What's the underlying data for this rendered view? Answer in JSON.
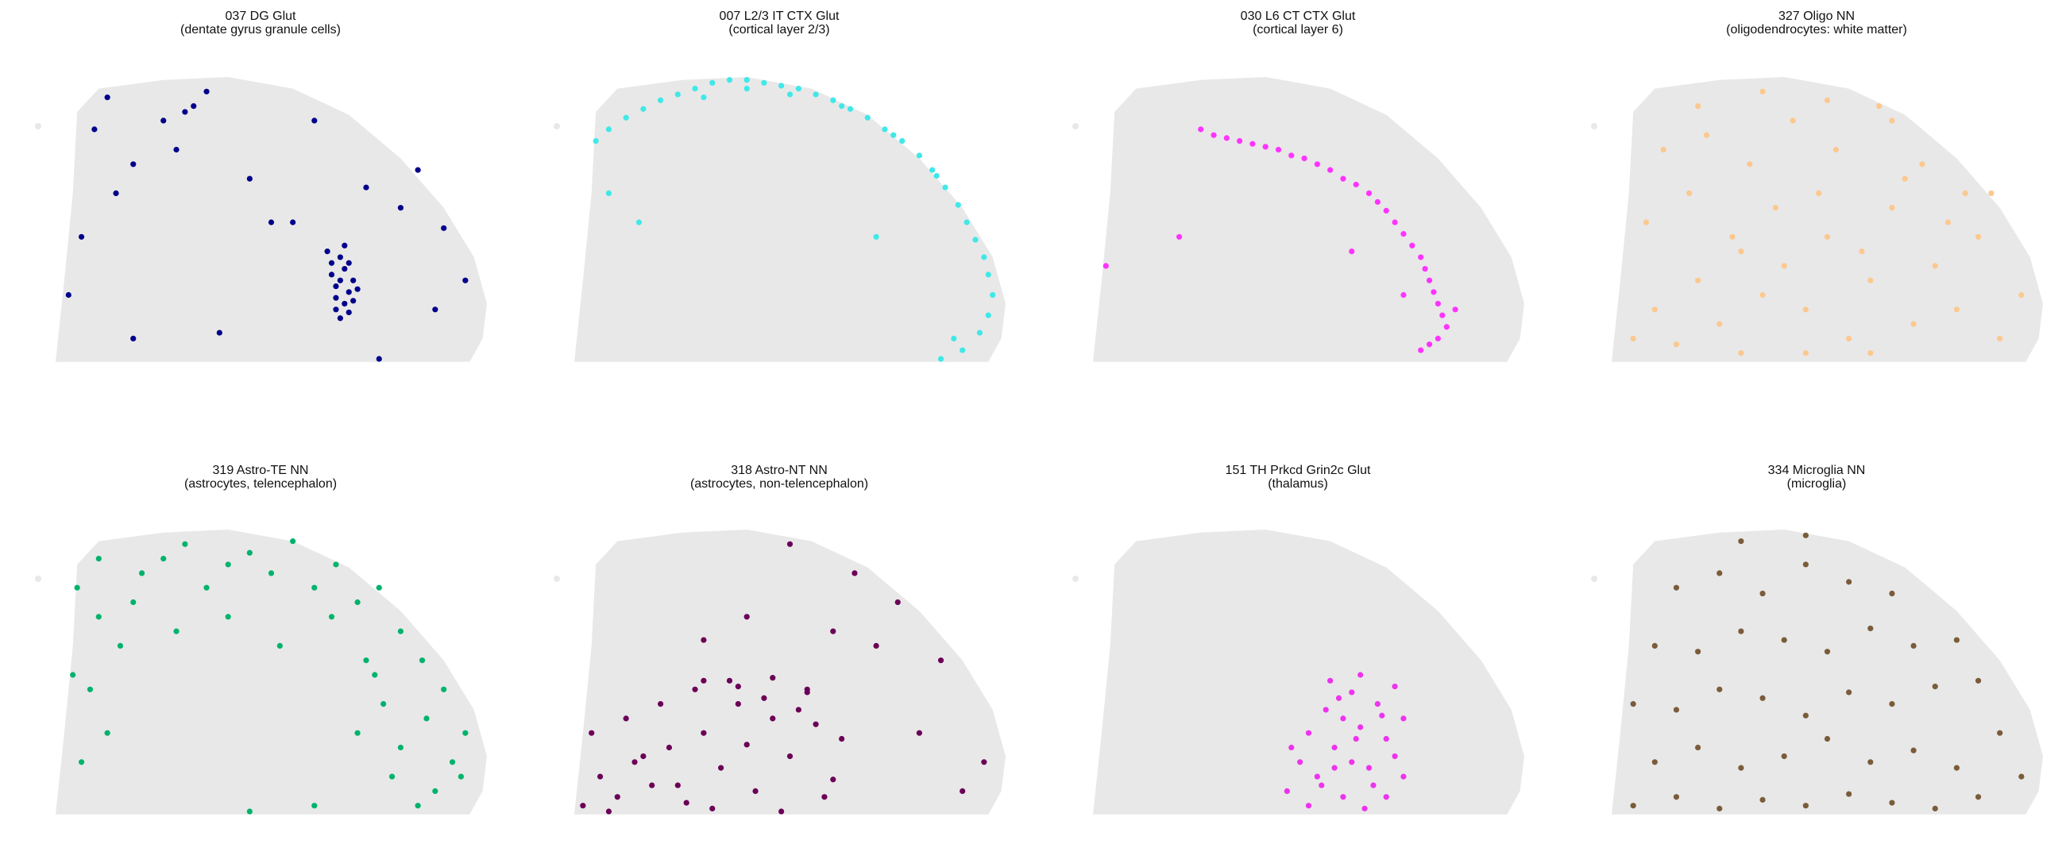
{
  "chart_data": [
    {
      "type": "scatter",
      "title": "037 DG Glut",
      "subtitle": "(dentate gyrus granule cells)",
      "color": "#00008b",
      "xlim": [
        0,
        100
      ],
      "ylim": [
        0,
        100
      ],
      "x": [
        63,
        64,
        64,
        65,
        65,
        66,
        66,
        67,
        67,
        68,
        68,
        69,
        69,
        70,
        65,
        66,
        67,
        68,
        9,
        18,
        25,
        32,
        28,
        14,
        6,
        3,
        35,
        45,
        55,
        72,
        80,
        90,
        95,
        88,
        75,
        38,
        50,
        60,
        18,
        30,
        84,
        12
      ],
      "y": [
        40,
        36,
        32,
        28,
        24,
        38,
        30,
        22,
        34,
        26,
        19,
        30,
        23,
        27,
        20,
        17,
        42,
        36,
        82,
        70,
        85,
        90,
        75,
        60,
        45,
        25,
        95,
        65,
        50,
        62,
        55,
        48,
        30,
        20,
        3,
        12,
        50,
        85,
        10,
        88,
        68,
        93
      ]
    },
    {
      "type": "scatter",
      "title": "007 L2/3 IT CTX Glut",
      "subtitle": "(cortical layer 2/3)",
      "color": "#40e8e8",
      "xlim": [
        0,
        100
      ],
      "ylim": [
        0,
        100
      ],
      "x": [
        5,
        8,
        12,
        16,
        20,
        24,
        28,
        32,
        36,
        40,
        44,
        48,
        52,
        56,
        60,
        64,
        68,
        72,
        76,
        80,
        83,
        86,
        89,
        91,
        93,
        95,
        96,
        97,
        96,
        94,
        90,
        85,
        30,
        40,
        50,
        62,
        74,
        84,
        8,
        15,
        88,
        70
      ],
      "y": [
        78,
        82,
        86,
        89,
        92,
        94,
        96,
        98,
        99,
        99,
        98,
        97,
        96,
        94,
        92,
        89,
        86,
        82,
        78,
        73,
        68,
        62,
        56,
        50,
        44,
        38,
        32,
        25,
        18,
        12,
        6,
        3,
        93,
        96,
        94,
        90,
        80,
        66,
        60,
        50,
        10,
        45
      ]
    },
    {
      "type": "scatter",
      "title": "030 L6 CT CTX Glut",
      "subtitle": "(cortical layer 6)",
      "color": "#ff33ff",
      "xlim": [
        0,
        100
      ],
      "ylim": [
        0,
        100
      ],
      "x": [
        25,
        28,
        31,
        34,
        37,
        40,
        43,
        46,
        49,
        52,
        55,
        58,
        61,
        64,
        66,
        68,
        70,
        72,
        74,
        76,
        77,
        78,
        79,
        80,
        81,
        82,
        80,
        78,
        76,
        84,
        3,
        20,
        60,
        72
      ],
      "y": [
        82,
        80,
        79,
        78,
        77,
        76,
        75,
        73,
        72,
        70,
        68,
        65,
        63,
        60,
        57,
        54,
        50,
        46,
        42,
        38,
        34,
        30,
        26,
        22,
        18,
        14,
        10,
        8,
        6,
        20,
        35,
        45,
        40,
        25
      ]
    },
    {
      "type": "scatter",
      "title": "327 Oligo NN",
      "subtitle": "(oligodendrocytes: white matter)",
      "color": "#fcc88f",
      "xlim": [
        0,
        100
      ],
      "ylim": [
        0,
        100
      ],
      "x": [
        5,
        10,
        15,
        20,
        25,
        30,
        35,
        40,
        45,
        50,
        55,
        60,
        65,
        70,
        75,
        80,
        85,
        90,
        95,
        8,
        18,
        28,
        38,
        48,
        58,
        68,
        78,
        88,
        12,
        22,
        32,
        42,
        52,
        62,
        72,
        82,
        20,
        35,
        50,
        65,
        30,
        45,
        60
      ],
      "y": [
        10,
        20,
        8,
        30,
        15,
        40,
        25,
        35,
        20,
        45,
        10,
        30,
        55,
        15,
        35,
        20,
        45,
        10,
        25,
        50,
        60,
        45,
        55,
        60,
        40,
        65,
        50,
        60,
        75,
        80,
        70,
        85,
        75,
        90,
        70,
        60,
        90,
        95,
        92,
        85,
        5,
        5,
        5
      ]
    },
    {
      "type": "scatter",
      "title": "319 Astro-TE NN",
      "subtitle": "(astrocytes, telencephalon)",
      "color": "#00b36b",
      "xlim": [
        0,
        100
      ],
      "ylim": [
        0,
        100
      ],
      "x": [
        5,
        10,
        15,
        8,
        12,
        20,
        25,
        30,
        35,
        40,
        45,
        50,
        55,
        60,
        65,
        70,
        75,
        80,
        85,
        90,
        95,
        92,
        88,
        84,
        80,
        76,
        72,
        70,
        78,
        86,
        94,
        6,
        4,
        10,
        18,
        28,
        40,
        52,
        64,
        74,
        60,
        45
      ],
      "y": [
        80,
        70,
        60,
        45,
        30,
        85,
        90,
        95,
        80,
        88,
        92,
        85,
        96,
        80,
        88,
        75,
        80,
        65,
        55,
        45,
        30,
        20,
        10,
        5,
        25,
        40,
        55,
        30,
        15,
        35,
        15,
        20,
        50,
        90,
        75,
        65,
        70,
        60,
        70,
        50,
        5,
        3
      ]
    },
    {
      "type": "scatter",
      "title": "318 Astro-NT NN",
      "subtitle": "(astrocytes, non-telencephalon)",
      "color": "#6b0057",
      "xlim": [
        0,
        100
      ],
      "ylim": [
        0,
        100
      ],
      "x": [
        2,
        6,
        10,
        14,
        18,
        22,
        26,
        30,
        34,
        38,
        42,
        46,
        50,
        54,
        58,
        62,
        4,
        12,
        20,
        28,
        36,
        44,
        52,
        60,
        8,
        16,
        24,
        32,
        40,
        48,
        56,
        30,
        38,
        46,
        54,
        70,
        75,
        85,
        90,
        65,
        50,
        40,
        60,
        80,
        95,
        30
      ],
      "y": [
        5,
        15,
        8,
        20,
        12,
        25,
        6,
        30,
        18,
        40,
        10,
        35,
        22,
        45,
        8,
        28,
        30,
        35,
        40,
        45,
        48,
        42,
        38,
        14,
        3,
        22,
        12,
        4,
        26,
        3,
        33,
        48,
        46,
        49,
        44,
        60,
        75,
        55,
        10,
        85,
        95,
        70,
        65,
        30,
        20,
        62
      ]
    },
    {
      "type": "scatter",
      "title": "151 TH Prkcd Grin2c Glut",
      "subtitle": "(thalamus)",
      "color": "#ee33ee",
      "xlim": [
        0,
        100
      ],
      "ylim": [
        0,
        100
      ],
      "x": [
        45,
        48,
        50,
        52,
        54,
        56,
        58,
        60,
        62,
        64,
        66,
        68,
        70,
        72,
        50,
        55,
        60,
        65,
        70,
        53,
        58,
        63,
        68,
        46,
        57,
        62,
        67,
        72,
        61,
        56
      ],
      "y": [
        10,
        20,
        30,
        15,
        38,
        25,
        8,
        44,
        32,
        18,
        40,
        28,
        46,
        35,
        5,
        48,
        20,
        12,
        22,
        12,
        35,
        4,
        8,
        25,
        42,
        50,
        36,
        15,
        28,
        18
      ]
    },
    {
      "type": "scatter",
      "title": "334 Microglia NN",
      "subtitle": "(microglia)",
      "color": "#7a5c3a",
      "xlim": [
        0,
        100
      ],
      "ylim": [
        0,
        100
      ],
      "x": [
        5,
        15,
        25,
        35,
        45,
        55,
        65,
        75,
        85,
        95,
        10,
        20,
        30,
        40,
        50,
        60,
        70,
        80,
        90,
        5,
        15,
        25,
        35,
        45,
        55,
        65,
        75,
        85,
        10,
        20,
        30,
        40,
        50,
        60,
        70,
        80,
        15,
        25,
        35,
        45,
        55,
        65,
        30,
        45
      ],
      "y": [
        5,
        8,
        4,
        7,
        5,
        9,
        6,
        4,
        8,
        15,
        20,
        25,
        18,
        22,
        28,
        20,
        24,
        18,
        30,
        40,
        38,
        45,
        42,
        36,
        44,
        40,
        46,
        48,
        60,
        58,
        65,
        62,
        58,
        66,
        60,
        62,
        80,
        85,
        78,
        88,
        82,
        78,
        96,
        98
      ]
    }
  ]
}
